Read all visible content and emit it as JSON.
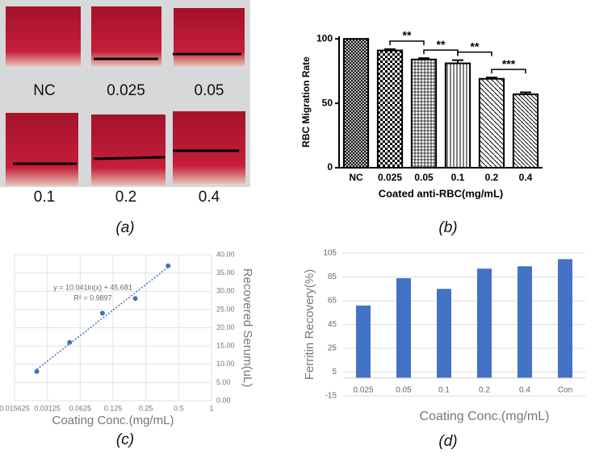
{
  "photo_panel": {
    "labels": [
      "NC",
      "0.025",
      "0.05",
      "0.1",
      "0.2",
      "0.4"
    ],
    "caption": "(a)"
  },
  "chart_data": [
    {
      "type": "patterned-bar",
      "caption": "(b)",
      "y_label": "RBC Migration Rate",
      "x_label": "Coated anti-RBC(mg/mL)",
      "categories": [
        "NC",
        "0.025",
        "0.05",
        "0.1",
        "0.2",
        "0.4"
      ],
      "values": [
        100,
        91,
        84,
        81,
        69,
        57
      ],
      "errors": [
        0,
        1,
        1,
        2.5,
        1,
        1.5
      ],
      "ylim": [
        0,
        102
      ],
      "yticks": [
        0,
        50,
        100
      ],
      "significance": [
        {
          "label": "**",
          "between": [
            "0.025",
            "0.05"
          ]
        },
        {
          "label": "**",
          "between": [
            "0.05",
            "0.1"
          ]
        },
        {
          "label": "**",
          "between": [
            "0.1",
            "0.2"
          ]
        },
        {
          "label": "***",
          "between": [
            "0.2",
            "0.4"
          ]
        }
      ]
    },
    {
      "type": "scatter",
      "caption": "(c)",
      "x_label": "Coating Conc.(mg/mL)",
      "y_label": "Recovered Serum(uL)",
      "x": [
        0.025,
        0.05,
        0.1,
        0.2,
        0.4
      ],
      "values": [
        8,
        16,
        24,
        28,
        37
      ],
      "color": "#4472c4",
      "log_x": true,
      "grid": true,
      "xlim": [
        0.015625,
        1
      ],
      "xticks": [
        0.015625,
        0.03125,
        0.0625,
        0.125,
        0.25,
        0.5,
        1
      ],
      "ylim": [
        0,
        40
      ],
      "yticks": [
        {
          "value": 0,
          "label": "0.00"
        },
        {
          "value": 5,
          "label": "5.00"
        },
        {
          "value": 10,
          "label": "10.00"
        },
        {
          "value": 15,
          "label": "15.00"
        },
        {
          "value": 20,
          "label": "20.00"
        },
        {
          "value": 25,
          "label": "25.00"
        },
        {
          "value": 30,
          "label": "30.00"
        },
        {
          "value": 35,
          "label": "35.00"
        },
        {
          "value": 40,
          "label": "40.00"
        }
      ],
      "annotations": [
        "y = 10.041ln(x) + 45.681",
        "R² = 0.9897"
      ]
    },
    {
      "type": "bar",
      "caption": "(d)",
      "x_label": "Coating Conc.(mg/mL)",
      "y_label": "Ferritin Recovery(%)",
      "categories": [
        "0.025",
        "0.05",
        "0.1",
        "0.2",
        "0.4",
        "Con"
      ],
      "values": [
        61,
        84,
        75,
        92,
        94,
        100
      ],
      "color": "#4472c4",
      "grid": true,
      "ylim": [
        -15,
        105
      ],
      "yticks": [
        -15,
        5,
        25,
        45,
        65,
        85,
        105
      ]
    }
  ]
}
